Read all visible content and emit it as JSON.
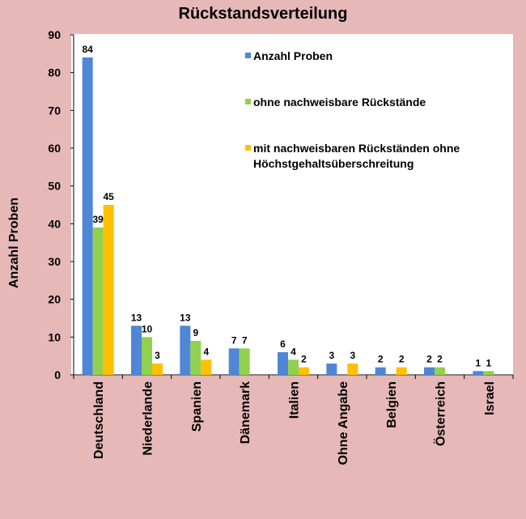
{
  "chart_data": {
    "type": "bar",
    "title": "Rückstandsverteilung",
    "xlabel": "",
    "ylabel": "Anzahl Proben",
    "ylim": [
      0,
      90
    ],
    "yticks": [
      0,
      10,
      20,
      30,
      40,
      50,
      60,
      70,
      80,
      90
    ],
    "grid": false,
    "legend_position": "top-right",
    "categories": [
      "Deutschland",
      "Niederlande",
      "Spanien",
      "Dänemark",
      "Italien",
      "Ohne Angabe",
      "Belgien",
      "Österreich",
      "Israel"
    ],
    "series": [
      {
        "name": "Anzahl Proben",
        "color": "#4f86d6",
        "values": [
          84,
          13,
          13,
          7,
          6,
          3,
          2,
          2,
          1
        ]
      },
      {
        "name": "ohne nachweisbare Rückstände",
        "color": "#92d050",
        "values": [
          39,
          10,
          9,
          7,
          4,
          null,
          null,
          2,
          1
        ]
      },
      {
        "name": "mit nachweisbaren Rückständen ohne Höchstgehaltsüberschreitung",
        "legend_lines": [
          "mit nachweisbaren Rückständen ohne",
          "Höchstgehaltsüberschreitung"
        ],
        "color": "#ffc000",
        "values": [
          45,
          3,
          4,
          null,
          2,
          3,
          2,
          null,
          null
        ]
      }
    ]
  }
}
